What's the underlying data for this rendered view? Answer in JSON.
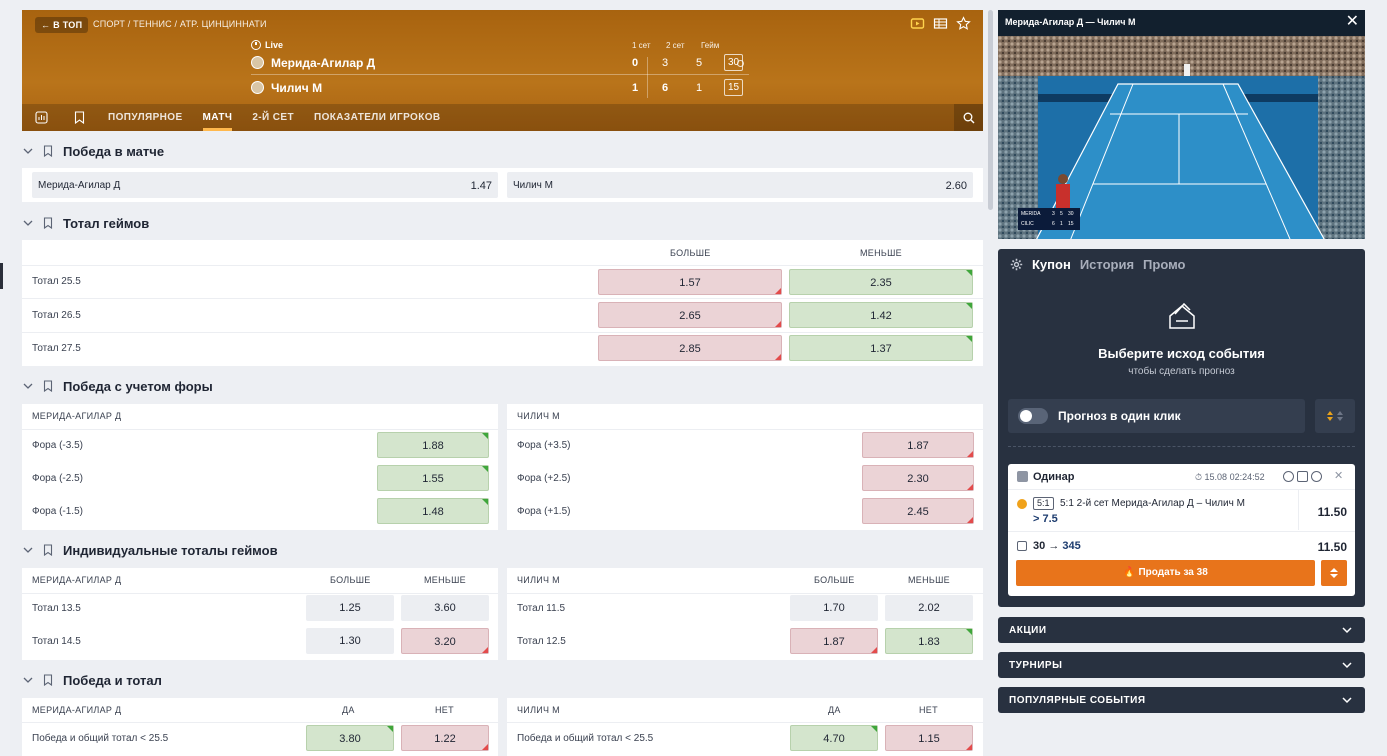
{
  "header": {
    "back_label": "В ТОП",
    "breadcrumb": "СПОРТ / ТЕННИС / ATP. ЦИНЦИННАТИ",
    "live": "Live",
    "col_set1": "1 сет",
    "col_set2": "2 сет",
    "col_game": "Гейм",
    "p1": {
      "name": "Мерида-Агилар Д",
      "sets": "0",
      "s1": "3",
      "s2": "5",
      "game": "30"
    },
    "p2": {
      "name": "Чилич М",
      "sets": "1",
      "s1": "6",
      "s2": "1",
      "game": "15"
    }
  },
  "nav": {
    "tabs": [
      {
        "label": "ПОПУЛЯРНОЕ"
      },
      {
        "label": "МАТЧ"
      },
      {
        "label": "2-Й СЕТ"
      },
      {
        "label": "ПОКАЗАТЕЛИ ИГРОКОВ"
      }
    ],
    "active": "МАТЧ"
  },
  "sections": {
    "win": {
      "title": "Победа в матче",
      "p1": {
        "label": "Мерида-Агилар Д",
        "odd": "1.47"
      },
      "p2": {
        "label": "Чилич М",
        "odd": "2.60"
      }
    },
    "total": {
      "title": "Тотал геймов",
      "over": "БОЛЬШЕ",
      "under": "МЕНЬШЕ",
      "rows": [
        {
          "label": "Тотал 25.5",
          "over": "1.57",
          "under": "2.35"
        },
        {
          "label": "Тотал 26.5",
          "over": "2.65",
          "under": "1.42"
        },
        {
          "label": "Тотал 27.5",
          "over": "2.85",
          "under": "1.37"
        }
      ]
    },
    "handicap": {
      "title": "Победа с учетом форы",
      "left_head": "МЕРИДА-АГИЛАР Д",
      "right_head": "ЧИЛИЧ М",
      "left": [
        {
          "label": "Фора (-3.5)",
          "odd": "1.88"
        },
        {
          "label": "Фора (-2.5)",
          "odd": "1.55"
        },
        {
          "label": "Фора (-1.5)",
          "odd": "1.48"
        }
      ],
      "right": [
        {
          "label": "Фора (+3.5)",
          "odd": "1.87"
        },
        {
          "label": "Фора (+2.5)",
          "odd": "2.30"
        },
        {
          "label": "Фора (+1.5)",
          "odd": "2.45"
        }
      ]
    },
    "ind_total": {
      "title": "Индивидуальные тоталы геймов",
      "left_head": "МЕРИДА-АГИЛАР Д",
      "right_head": "ЧИЛИЧ М",
      "over": "БОЛЬШЕ",
      "under": "МЕНЬШЕ",
      "left": [
        {
          "label": "Тотал 13.5",
          "over": "1.25",
          "under": "3.60"
        },
        {
          "label": "Тотал 14.5",
          "over": "1.30",
          "under": "3.20"
        }
      ],
      "right": [
        {
          "label": "Тотал 11.5",
          "over": "1.70",
          "under": "2.02"
        },
        {
          "label": "Тотал 12.5",
          "over": "1.87",
          "under": "1.83"
        }
      ]
    },
    "win_total": {
      "title": "Победа и тотал",
      "left_head": "МЕРИДА-АГИЛАР Д",
      "right_head": "ЧИЛИЧ М",
      "yes": "ДА",
      "no": "НЕТ",
      "left": {
        "label": "Победа и общий тотал < 25.5",
        "yes": "3.80",
        "no": "1.22"
      },
      "right": {
        "label": "Победа и общий тотал < 25.5",
        "yes": "4.70",
        "no": "1.15"
      }
    }
  },
  "video": {
    "title": "Мерида-Агилар Д — Чилич М",
    "close": "✕",
    "scoreboard": {
      "p1": "MERIDA",
      "p1_sets": "3",
      "p1_s2": "5",
      "p1_game": "30",
      "p2": "CILIC",
      "p2_sets": "6",
      "p2_s2": "1",
      "p2_game": "15"
    }
  },
  "slip": {
    "tabs": [
      "Купон",
      "История",
      "Промо"
    ],
    "empty_title": "Выберите исход события",
    "empty_sub": "чтобы сделать прогноз",
    "oneclick": "Прогноз в один клик",
    "bet": {
      "type": "Одинар",
      "date": "15.08",
      "time": "02:24:52",
      "badge": "5:1",
      "event": "5:1 2-й сет Мерида-Агилар Д – Чилич М",
      "selection": "> 7.5",
      "odd": "11.50",
      "stake": "30",
      "arrow": "→",
      "win": "345",
      "total_odd": "11.50",
      "sell_label": "Продать за 38"
    }
  },
  "accordions": [
    {
      "label": "АКЦИИ"
    },
    {
      "label": "ТУРНИРЫ"
    },
    {
      "label": "ПОПУЛЯРНЫЕ СОБЫТИЯ"
    }
  ],
  "colors": {
    "header": "#b06b14",
    "accent": "#e8741b",
    "dark": "#283140",
    "red": "#ebd3d6",
    "green": "#d4e5cd"
  }
}
